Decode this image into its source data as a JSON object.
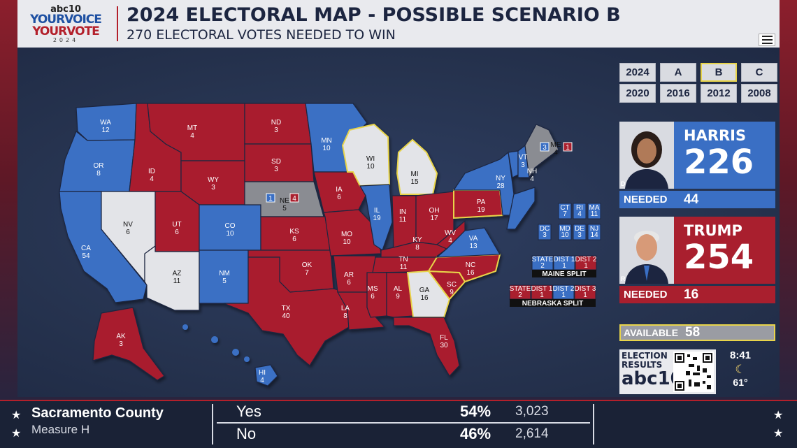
{
  "header": {
    "logo": {
      "line1": "abc10",
      "line2": "YOURVOICE",
      "line3": "YOURVOTE",
      "line4": "2024"
    },
    "title": "2024 ELECTORAL MAP - POSSIBLE SCENARIO B",
    "subtitle": "270 ELECTORAL VOTES NEEDED TO WIN",
    "menu_icon": "hamburger-menu-icon"
  },
  "scenarios": {
    "row1": [
      "2024",
      "A",
      "B",
      "C"
    ],
    "row2": [
      "2020",
      "2016",
      "2012",
      "2008"
    ],
    "active": "B"
  },
  "harris": {
    "name": "HARRIS",
    "votes": "226",
    "needed_label": "NEEDED",
    "needed": "44",
    "party": "D",
    "color": "#3a6fc4"
  },
  "trump": {
    "name": "TRUMP",
    "votes": "254",
    "needed_label": "NEEDED",
    "needed": "16",
    "party": "R",
    "color": "#a91f2e"
  },
  "available": {
    "label": "AVAILABLE",
    "value": "58"
  },
  "election_results": {
    "line1": "ELECTION",
    "line2": "RESULTS",
    "line3": "abc10"
  },
  "clock": {
    "time": "8:41",
    "weather_icon": "moon-icon",
    "temp": "61°"
  },
  "colors": {
    "dem": "#3a6fc4",
    "rep": "#a91f2e",
    "tossup": "#e3e4e8",
    "split": "#8a8c92",
    "highlight": "#e8d44a"
  },
  "map": {
    "states": [
      {
        "abbr": "WA",
        "ev": "12"
      },
      {
        "abbr": "OR",
        "ev": "8"
      },
      {
        "abbr": "CA",
        "ev": "54"
      },
      {
        "abbr": "NV",
        "ev": "6"
      },
      {
        "abbr": "ID",
        "ev": "4"
      },
      {
        "abbr": "MT",
        "ev": "4"
      },
      {
        "abbr": "WY",
        "ev": "3"
      },
      {
        "abbr": "UT",
        "ev": "6"
      },
      {
        "abbr": "AZ",
        "ev": "11"
      },
      {
        "abbr": "CO",
        "ev": "10"
      },
      {
        "abbr": "NM",
        "ev": "5"
      },
      {
        "abbr": "ND",
        "ev": "3"
      },
      {
        "abbr": "SD",
        "ev": "3"
      },
      {
        "abbr": "NE",
        "ev": "5"
      },
      {
        "abbr": "KS",
        "ev": "6"
      },
      {
        "abbr": "OK",
        "ev": "7"
      },
      {
        "abbr": "TX",
        "ev": "40"
      },
      {
        "abbr": "MN",
        "ev": "10"
      },
      {
        "abbr": "IA",
        "ev": "6"
      },
      {
        "abbr": "MO",
        "ev": "10"
      },
      {
        "abbr": "AR",
        "ev": "6"
      },
      {
        "abbr": "LA",
        "ev": "8"
      },
      {
        "abbr": "WI",
        "ev": "10"
      },
      {
        "abbr": "IL",
        "ev": "19"
      },
      {
        "abbr": "MI",
        "ev": "15"
      },
      {
        "abbr": "IN",
        "ev": "11"
      },
      {
        "abbr": "OH",
        "ev": "17"
      },
      {
        "abbr": "KY",
        "ev": "8"
      },
      {
        "abbr": "TN",
        "ev": "11"
      },
      {
        "abbr": "MS",
        "ev": "6"
      },
      {
        "abbr": "AL",
        "ev": "9"
      },
      {
        "abbr": "GA",
        "ev": "16"
      },
      {
        "abbr": "FL",
        "ev": "30"
      },
      {
        "abbr": "SC",
        "ev": "9"
      },
      {
        "abbr": "NC",
        "ev": "16"
      },
      {
        "abbr": "VA",
        "ev": "13"
      },
      {
        "abbr": "WV",
        "ev": "4"
      },
      {
        "abbr": "PA",
        "ev": "19"
      },
      {
        "abbr": "NY",
        "ev": "28"
      },
      {
        "abbr": "VT",
        "ev": "3"
      },
      {
        "abbr": "NH",
        "ev": "4"
      },
      {
        "abbr": "ME",
        "ev": "4"
      },
      {
        "abbr": "AK",
        "ev": "3"
      },
      {
        "abbr": "HI",
        "ev": "4"
      }
    ],
    "ne_split": {
      "dem": "1",
      "rep": "4"
    },
    "me_split": {
      "dem": "3",
      "rep": "1"
    },
    "small_states": [
      {
        "abbr": "CT",
        "ev": "7"
      },
      {
        "abbr": "RI",
        "ev": "4"
      },
      {
        "abbr": "MA",
        "ev": "11"
      },
      {
        "abbr": "DC",
        "ev": "3"
      },
      {
        "abbr": "MD",
        "ev": "10"
      },
      {
        "abbr": "DE",
        "ev": "3"
      },
      {
        "abbr": "NJ",
        "ev": "14"
      }
    ],
    "maine_split": {
      "title": "MAINE SPLIT",
      "cells": [
        {
          "label": "STATE",
          "value": "2"
        },
        {
          "label": "DIST 1",
          "value": "1"
        },
        {
          "label": "DIST 2",
          "value": "1"
        }
      ]
    },
    "nebraska_split": {
      "title": "NEBRASKA SPLIT",
      "cells": [
        {
          "label": "STATE",
          "value": "2"
        },
        {
          "label": "DIST 1",
          "value": "1"
        },
        {
          "label": "DIST 2",
          "value": "1"
        },
        {
          "label": "DIST 3",
          "value": "1"
        }
      ]
    }
  },
  "ticker": {
    "county": "Sacramento County",
    "measure": "Measure H",
    "rows": [
      {
        "label": "Yes",
        "pct": "54%",
        "count": "3,023"
      },
      {
        "label": "No",
        "pct": "46%",
        "count": "2,614"
      }
    ]
  }
}
